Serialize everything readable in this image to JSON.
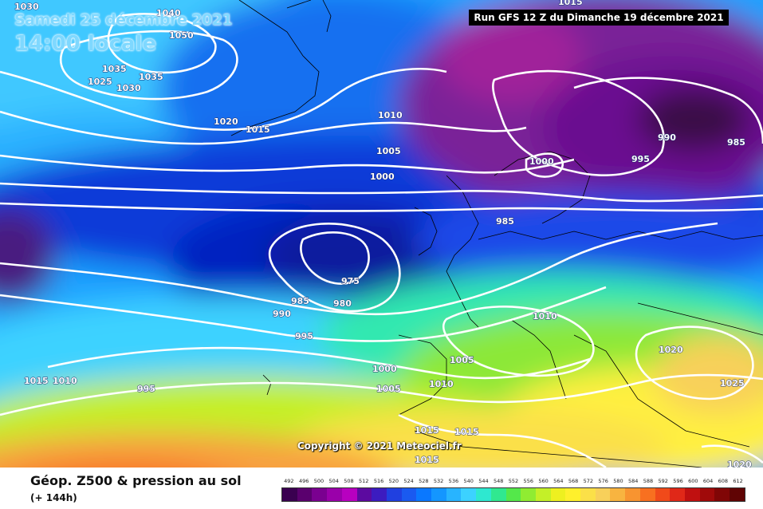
{
  "header": {
    "date_line": "Samedi 25 décembre 2021",
    "time_line": "14:00 locale",
    "run_info": "Run GFS 12 Z du Dimanche 19 décembre 2021"
  },
  "copyright": "Copyright © 2021 Meteociel.fr",
  "footer": {
    "product_title": "Géop. Z500 & pression au sol",
    "forecast_lead": "(+ 144h)"
  },
  "legend": {
    "values": [
      "492",
      "496",
      "500",
      "504",
      "508",
      "512",
      "516",
      "520",
      "524",
      "528",
      "532",
      "536",
      "540",
      "544",
      "548",
      "552",
      "556",
      "560",
      "564",
      "568",
      "572",
      "576",
      "580",
      "584",
      "588",
      "592",
      "596",
      "600",
      "604",
      "608",
      "612"
    ],
    "colors": [
      "#3a0050",
      "#5a006e",
      "#7a0090",
      "#9a00aa",
      "#b800c0",
      "#5c0aa0",
      "#3c1cc0",
      "#2040e0",
      "#1a5af0",
      "#0a78ff",
      "#1496ff",
      "#28b4ff",
      "#3cd2ff",
      "#2ee8d0",
      "#30e890",
      "#54e84a",
      "#90ec32",
      "#c4f028",
      "#eef020",
      "#fff02c",
      "#fbe048",
      "#f8d05a",
      "#f8b440",
      "#f89430",
      "#f87020",
      "#f04a1a",
      "#e02818",
      "#c01010",
      "#a00a0a",
      "#800606",
      "#600404"
    ]
  },
  "isobars": [
    {
      "text": "1030"
    },
    {
      "text": "1040"
    },
    {
      "text": "1050"
    },
    {
      "text": "1035"
    },
    {
      "text": "1025"
    },
    {
      "text": "1030"
    },
    {
      "text": "1035"
    },
    {
      "text": "1020"
    },
    {
      "text": "1015"
    },
    {
      "text": "1010"
    },
    {
      "text": "1005"
    },
    {
      "text": "1000"
    },
    {
      "text": "1000"
    },
    {
      "text": "990"
    },
    {
      "text": "995"
    },
    {
      "text": "985"
    },
    {
      "text": "985"
    },
    {
      "text": "975"
    },
    {
      "text": "985"
    },
    {
      "text": "980"
    },
    {
      "text": "990"
    },
    {
      "text": "995"
    },
    {
      "text": "1010"
    },
    {
      "text": "1020"
    },
    {
      "text": "1025"
    },
    {
      "text": "1015"
    },
    {
      "text": "1010"
    },
    {
      "text": "995"
    },
    {
      "text": "1000"
    },
    {
      "text": "1005"
    },
    {
      "text": "1005"
    },
    {
      "text": "1010"
    },
    {
      "text": "1015"
    },
    {
      "text": "1015"
    },
    {
      "text": "1015"
    },
    {
      "text": "1020"
    },
    {
      "text": "1015"
    }
  ]
}
